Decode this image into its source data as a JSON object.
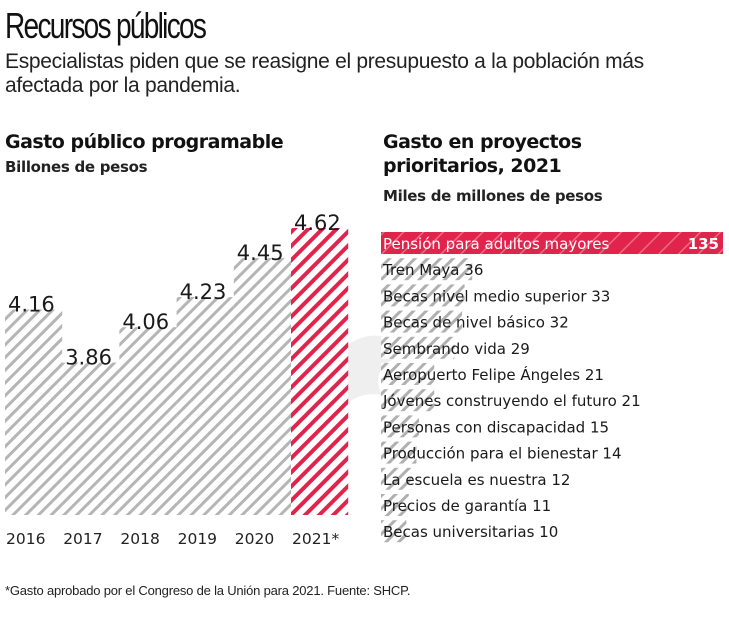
{
  "header": {
    "title": "Recursos públicos",
    "subtitle": "Especialistas piden que se reasigne el presupuesto a la población más afectada por la pandemia."
  },
  "colors": {
    "accent_red": "#e0244b",
    "hatch_gray": "#b8b8b8",
    "text": "#1a1a1a"
  },
  "chart_data": [
    {
      "type": "bar",
      "orientation": "vertical",
      "title": "Gasto público programable",
      "subtitle": "Billones de pesos",
      "xlabel": "",
      "ylabel": "",
      "categories": [
        "2016",
        "2017",
        "2018",
        "2019",
        "2020",
        "2021*"
      ],
      "values": [
        4.16,
        3.86,
        4.06,
        4.23,
        4.45,
        4.62
      ],
      "value_labels": [
        "4.16",
        "3.86",
        "4.06",
        "4.23",
        "4.45",
        "4.62"
      ],
      "highlight": [
        "2021*"
      ],
      "grid": false,
      "legend": "none"
    },
    {
      "type": "bar",
      "orientation": "horizontal",
      "title": "Gasto en proyectos prioritarios, 2021",
      "title_lines": [
        "Gasto en proyectos",
        "prioritarios, 2021"
      ],
      "subtitle": "Miles de millones de pesos",
      "categories": [
        "Pensión para adultos mayores",
        "Tren Maya",
        "Becas nivel medio superior",
        "Becas de nivel básico",
        "Sembrando vida",
        "Aeropuerto Felipe Ángeles",
        "Jóvenes construyendo el futuro",
        "Personas con discapacidad",
        "Producción para el bienestar",
        "La escuela es nuestra",
        "Precios de garantía",
        "Becas universitarias"
      ],
      "values": [
        135,
        36,
        33,
        32,
        29,
        21,
        21,
        15,
        14,
        12,
        11,
        10
      ],
      "highlight": [
        "Pensión para adultos mayores"
      ],
      "xlim": [
        0,
        135
      ],
      "grid": false,
      "legend": "none"
    }
  ],
  "footnote": "*Gasto aprobado por el Congreso de la Unión para 2021. Fuente: SHCP."
}
